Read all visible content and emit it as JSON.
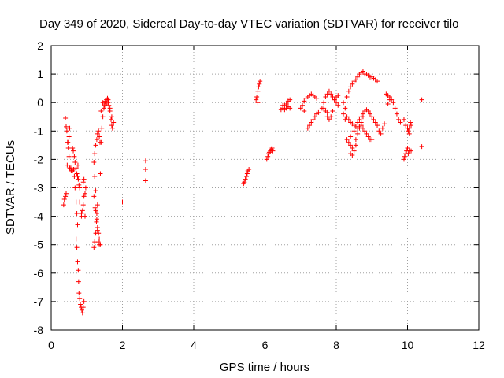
{
  "chart_data": {
    "type": "scatter",
    "title": "Day 349 of 2020, Sidereal Day-to-day VTEC variation (SDTVAR) for receiver tilo",
    "xlabel": "GPS time / hours",
    "ylabel": "SDTVAR / TECUs",
    "xlim": [
      0,
      12
    ],
    "ylim": [
      -8,
      2
    ],
    "xticks": [
      0,
      2,
      4,
      6,
      8,
      10,
      12
    ],
    "yticks": [
      -8,
      -7,
      -6,
      -5,
      -4,
      -3,
      -2,
      -1,
      0,
      1,
      2
    ],
    "grid": true,
    "marker": "+",
    "series": [
      {
        "name": "SDTVAR",
        "color": "#ff0000",
        "points": [
          [
            0.35,
            -3.6
          ],
          [
            0.37,
            -3.4
          ],
          [
            0.4,
            -3.3
          ],
          [
            0.42,
            -3.2
          ],
          [
            0.45,
            -2.2
          ],
          [
            0.47,
            -1.4
          ],
          [
            0.5,
            -1.2
          ],
          [
            0.52,
            -0.9
          ],
          [
            0.55,
            -2.3
          ],
          [
            0.57,
            -2.4
          ],
          [
            0.4,
            -0.55
          ],
          [
            0.42,
            -0.85
          ],
          [
            0.44,
            -1.0
          ],
          [
            0.46,
            -1.4
          ],
          [
            0.48,
            -1.6
          ],
          [
            0.5,
            -1.9
          ],
          [
            0.52,
            -2.3
          ],
          [
            0.56,
            -2.4
          ],
          [
            0.6,
            -2.4
          ],
          [
            0.63,
            -2.35
          ],
          [
            0.6,
            -1.6
          ],
          [
            0.62,
            -1.7
          ],
          [
            0.65,
            -1.9
          ],
          [
            0.67,
            -2.1
          ],
          [
            0.7,
            -2.3
          ],
          [
            0.72,
            -2.5
          ],
          [
            0.74,
            -2.6
          ],
          [
            0.76,
            -2.7
          ],
          [
            0.78,
            -2.9
          ],
          [
            0.8,
            -3.0
          ],
          [
            0.65,
            -2.6
          ],
          [
            0.67,
            -3.0
          ],
          [
            0.7,
            -3.5
          ],
          [
            0.72,
            -3.9
          ],
          [
            0.74,
            -4.3
          ],
          [
            0.7,
            -4.8
          ],
          [
            0.72,
            -5.1
          ],
          [
            0.74,
            -5.6
          ],
          [
            0.76,
            -5.9
          ],
          [
            0.77,
            -6.3
          ],
          [
            0.78,
            -6.7
          ],
          [
            0.8,
            -6.9
          ],
          [
            0.82,
            -7.1
          ],
          [
            0.84,
            -7.2
          ],
          [
            0.86,
            -7.3
          ],
          [
            0.88,
            -7.4
          ],
          [
            0.9,
            -7.2
          ],
          [
            0.92,
            -7.0
          ],
          [
            0.85,
            -4.0
          ],
          [
            0.88,
            -3.8
          ],
          [
            0.9,
            -3.6
          ],
          [
            0.92,
            -3.3
          ],
          [
            0.95,
            -3.2
          ],
          [
            0.97,
            -3.0
          ],
          [
            0.9,
            -2.8
          ],
          [
            0.92,
            -2.7
          ],
          [
            0.8,
            -3.5
          ],
          [
            0.85,
            -3.9
          ],
          [
            0.95,
            -4.0
          ],
          [
            0.75,
            -2.2
          ],
          [
            1.2,
            -5.1
          ],
          [
            1.22,
            -4.9
          ],
          [
            1.25,
            -4.6
          ],
          [
            1.27,
            -4.2
          ],
          [
            1.28,
            -3.9
          ],
          [
            1.3,
            -3.6
          ],
          [
            1.25,
            -3.1
          ],
          [
            1.22,
            -2.6
          ],
          [
            1.2,
            -2.1
          ],
          [
            1.22,
            -1.8
          ],
          [
            1.25,
            -1.5
          ],
          [
            1.28,
            -1.3
          ],
          [
            1.3,
            -1.1
          ],
          [
            1.33,
            -1.0
          ],
          [
            1.35,
            -1.2
          ],
          [
            1.37,
            -1.4
          ],
          [
            1.3,
            -4.4
          ],
          [
            1.33,
            -4.6
          ],
          [
            1.35,
            -4.8
          ],
          [
            1.38,
            -5.0
          ],
          [
            1.2,
            -3.3
          ],
          [
            1.23,
            -3.7
          ],
          [
            1.25,
            -3.8
          ],
          [
            1.28,
            -4.1
          ],
          [
            1.3,
            -4.5
          ],
          [
            1.32,
            -4.9
          ],
          [
            1.35,
            -5.0
          ],
          [
            1.38,
            -2.5
          ],
          [
            1.4,
            -1.4
          ],
          [
            1.42,
            -0.9
          ],
          [
            1.45,
            -0.5
          ],
          [
            1.48,
            -0.2
          ],
          [
            1.5,
            -0.05
          ],
          [
            1.52,
            0.05
          ],
          [
            1.55,
            0.1
          ],
          [
            1.58,
            0.15
          ],
          [
            1.6,
            0.1
          ],
          [
            1.62,
            -0.1
          ],
          [
            1.65,
            -0.3
          ],
          [
            1.68,
            -0.6
          ],
          [
            1.7,
            -0.8
          ],
          [
            1.72,
            -0.9
          ],
          [
            1.45,
            0.0
          ],
          [
            1.5,
            -0.1
          ],
          [
            1.55,
            -0.05
          ],
          [
            1.6,
            0.0
          ],
          [
            1.65,
            -0.2
          ],
          [
            1.7,
            -0.5
          ],
          [
            1.4,
            -0.3
          ],
          [
            1.75,
            -0.7
          ],
          [
            2.0,
            -3.5
          ],
          [
            2.65,
            -2.05
          ],
          [
            2.65,
            -2.35
          ],
          [
            2.65,
            -2.75
          ],
          [
            5.4,
            -2.85
          ],
          [
            5.42,
            -2.8
          ],
          [
            5.45,
            -2.7
          ],
          [
            5.48,
            -2.6
          ],
          [
            5.5,
            -2.5
          ],
          [
            5.52,
            -2.4
          ],
          [
            5.55,
            -2.35
          ],
          [
            5.75,
            0.1
          ],
          [
            5.77,
            0.2
          ],
          [
            5.8,
            0.4
          ],
          [
            5.82,
            0.55
          ],
          [
            5.84,
            0.65
          ],
          [
            5.86,
            0.75
          ],
          [
            5.8,
            0.0
          ],
          [
            6.05,
            -2.0
          ],
          [
            6.08,
            -1.9
          ],
          [
            6.1,
            -1.8
          ],
          [
            6.12,
            -1.75
          ],
          [
            6.15,
            -1.7
          ],
          [
            6.18,
            -1.65
          ],
          [
            6.2,
            -1.6
          ],
          [
            6.22,
            -1.7
          ],
          [
            6.45,
            -0.25
          ],
          [
            6.5,
            -0.2
          ],
          [
            6.55,
            -0.1
          ],
          [
            6.6,
            -0.05
          ],
          [
            6.65,
            -0.15
          ],
          [
            6.7,
            -0.2
          ],
          [
            6.5,
            -0.1
          ],
          [
            6.55,
            -0.25
          ],
          [
            6.6,
            -0.2
          ],
          [
            6.65,
            0.05
          ],
          [
            6.7,
            0.1
          ],
          [
            7.0,
            -0.2
          ],
          [
            7.05,
            -0.1
          ],
          [
            7.1,
            0.05
          ],
          [
            7.15,
            0.15
          ],
          [
            7.2,
            0.2
          ],
          [
            7.25,
            0.25
          ],
          [
            7.3,
            0.3
          ],
          [
            7.35,
            0.25
          ],
          [
            7.4,
            0.2
          ],
          [
            7.45,
            0.15
          ],
          [
            7.2,
            -0.9
          ],
          [
            7.25,
            -0.8
          ],
          [
            7.3,
            -0.7
          ],
          [
            7.35,
            -0.6
          ],
          [
            7.4,
            -0.5
          ],
          [
            7.45,
            -0.4
          ],
          [
            7.5,
            -0.35
          ],
          [
            7.1,
            -0.3
          ],
          [
            7.6,
            -0.2
          ],
          [
            7.65,
            0.0
          ],
          [
            7.7,
            0.2
          ],
          [
            7.75,
            0.3
          ],
          [
            7.8,
            0.4
          ],
          [
            7.85,
            0.3
          ],
          [
            7.9,
            0.2
          ],
          [
            7.95,
            0.1
          ],
          [
            8.0,
            0.0
          ],
          [
            8.05,
            -0.1
          ],
          [
            7.7,
            -0.3
          ],
          [
            7.75,
            -0.5
          ],
          [
            7.8,
            -0.6
          ],
          [
            7.85,
            -0.5
          ],
          [
            7.9,
            -0.3
          ],
          [
            7.95,
            0.1
          ],
          [
            8.0,
            0.2
          ],
          [
            8.05,
            0.25
          ],
          [
            7.65,
            -0.2
          ],
          [
            7.75,
            -0.35
          ],
          [
            8.3,
            -1.3
          ],
          [
            8.35,
            -1.4
          ],
          [
            8.4,
            -1.5
          ],
          [
            8.45,
            -1.6
          ],
          [
            8.5,
            -1.7
          ],
          [
            8.55,
            -1.5
          ],
          [
            8.4,
            -1.8
          ],
          [
            8.45,
            -1.85
          ],
          [
            8.55,
            -1.3
          ],
          [
            8.6,
            -1.1
          ],
          [
            8.65,
            -0.9
          ],
          [
            8.7,
            -0.8
          ],
          [
            8.75,
            -0.9
          ],
          [
            8.8,
            -1.0
          ],
          [
            8.85,
            -1.1
          ],
          [
            8.9,
            -1.2
          ],
          [
            8.95,
            -1.3
          ],
          [
            9.0,
            -1.3
          ],
          [
            8.6,
            -0.7
          ],
          [
            8.65,
            -0.6
          ],
          [
            8.7,
            -0.5
          ],
          [
            8.75,
            -0.4
          ],
          [
            8.8,
            -0.3
          ],
          [
            8.85,
            -0.25
          ],
          [
            8.9,
            -0.3
          ],
          [
            8.95,
            -0.4
          ],
          [
            9.0,
            -0.5
          ],
          [
            9.05,
            -0.6
          ],
          [
            8.3,
            -0.5
          ],
          [
            8.35,
            -0.6
          ],
          [
            8.4,
            -0.7
          ],
          [
            8.45,
            -0.75
          ],
          [
            8.5,
            -0.8
          ],
          [
            8.55,
            -0.85
          ],
          [
            8.6,
            -0.9
          ],
          [
            8.65,
            -0.85
          ],
          [
            8.7,
            -0.7
          ],
          [
            8.75,
            -0.5
          ],
          [
            8.3,
            0.2
          ],
          [
            8.35,
            0.4
          ],
          [
            8.4,
            0.55
          ],
          [
            8.45,
            0.65
          ],
          [
            8.5,
            0.75
          ],
          [
            8.55,
            0.8
          ],
          [
            8.6,
            0.9
          ],
          [
            8.65,
            1.0
          ],
          [
            8.7,
            1.05
          ],
          [
            8.75,
            1.1
          ],
          [
            8.8,
            1.0
          ],
          [
            8.85,
            1.0
          ],
          [
            8.9,
            0.95
          ],
          [
            8.95,
            0.9
          ],
          [
            9.0,
            0.9
          ],
          [
            9.05,
            0.85
          ],
          [
            9.1,
            0.8
          ],
          [
            9.15,
            0.75
          ],
          [
            8.4,
            -1.2
          ],
          [
            8.5,
            -1.0
          ],
          [
            8.2,
            0.0
          ],
          [
            8.25,
            -0.2
          ],
          [
            8.2,
            -0.4
          ],
          [
            8.25,
            -0.6
          ],
          [
            9.1,
            -0.7
          ],
          [
            9.15,
            -0.8
          ],
          [
            9.2,
            -1.0
          ],
          [
            9.25,
            -1.1
          ],
          [
            9.3,
            -0.9
          ],
          [
            9.35,
            -0.75
          ],
          [
            9.4,
            0.3
          ],
          [
            9.45,
            0.25
          ],
          [
            9.5,
            0.2
          ],
          [
            9.55,
            0.1
          ],
          [
            9.6,
            0.0
          ],
          [
            9.65,
            -0.2
          ],
          [
            9.7,
            -0.4
          ],
          [
            9.75,
            -0.6
          ],
          [
            9.8,
            -0.7
          ],
          [
            9.5,
            0.1
          ],
          [
            9.45,
            -0.05
          ],
          [
            9.9,
            -2.0
          ],
          [
            9.92,
            -1.9
          ],
          [
            9.95,
            -1.8
          ],
          [
            9.97,
            -1.7
          ],
          [
            10.0,
            -1.6
          ],
          [
            10.02,
            -1.8
          ],
          [
            10.05,
            -1.7
          ],
          [
            9.9,
            -0.6
          ],
          [
            9.95,
            -0.8
          ],
          [
            10.0,
            -0.9
          ],
          [
            10.02,
            -1.0
          ],
          [
            10.05,
            -0.9
          ],
          [
            10.08,
            -0.7
          ],
          [
            10.1,
            -0.8
          ],
          [
            10.05,
            -1.1
          ],
          [
            10.1,
            -1.7
          ],
          [
            10.4,
            0.1
          ],
          [
            10.4,
            -1.55
          ]
        ]
      }
    ]
  }
}
